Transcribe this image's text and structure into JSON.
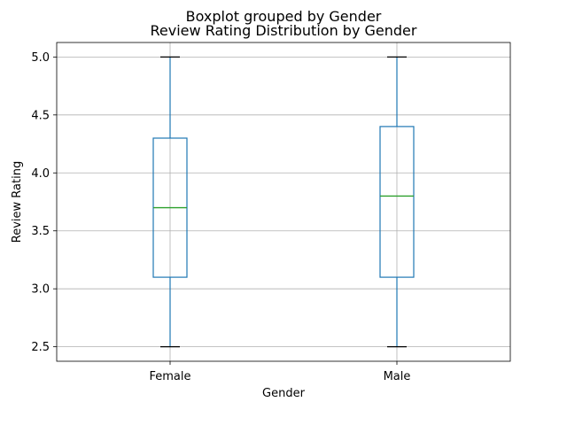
{
  "chart_data": {
    "type": "boxplot",
    "suptitle": "Boxplot grouped by Gender",
    "title": "Review Rating Distribution by Gender",
    "xlabel": "Gender",
    "ylabel": "Review Rating",
    "categories": [
      "Female",
      "Male"
    ],
    "boxes": [
      {
        "category": "Female",
        "whisker_low": 2.5,
        "q1": 3.1,
        "median": 3.7,
        "q3": 4.3,
        "whisker_high": 5.0
      },
      {
        "category": "Male",
        "whisker_low": 2.5,
        "q1": 3.1,
        "median": 3.8,
        "q3": 4.4,
        "whisker_high": 5.0
      }
    ],
    "yticks": [
      "2.5",
      "3.0",
      "3.5",
      "4.0",
      "4.5",
      "5.0"
    ],
    "ylim": [
      2.375,
      5.125
    ],
    "grid": true,
    "colors": {
      "box": "#1f77b4",
      "median": "#2ca02c",
      "cap": "#000000",
      "grid": "#b0b0b0"
    }
  }
}
